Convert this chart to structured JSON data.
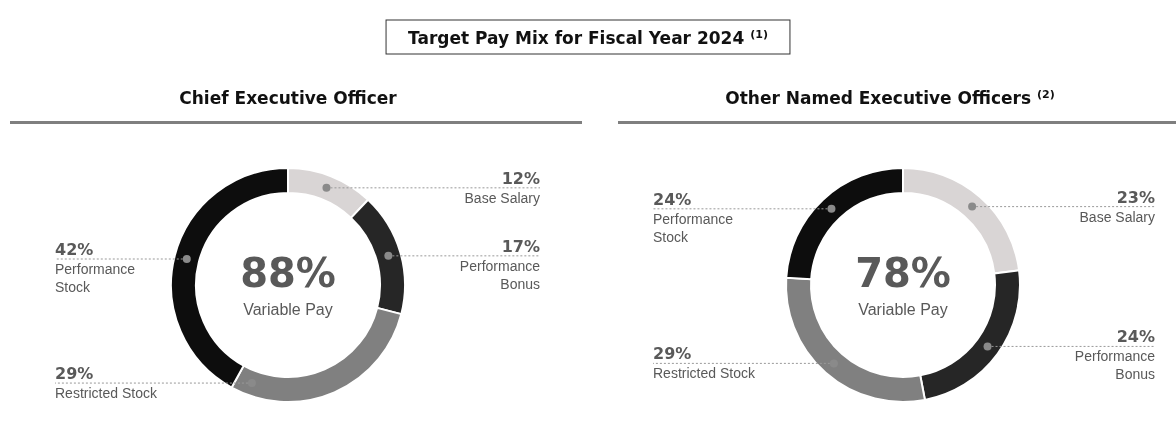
{
  "chart_data": [
    {
      "type": "donut",
      "title": "Target Pay Mix for Fiscal Year 2024 $^{(1)}$",
      "subtitle": "Chief Executive Officer",
      "categories": [
        "Base Salary",
        "Performance Bonus",
        "Restricted Stock",
        "Performance Stock"
      ],
      "values": [
        12,
        17,
        29,
        42
      ],
      "value_labels": [
        "12%",
        "17%",
        "29%",
        "42%"
      ],
      "colors": [
        "#d9d5d5",
        "#262626",
        "#808080",
        "#0d0d0d"
      ],
      "annotations": [
        "88%",
        "Variable Pay"
      ]
    },
    {
      "type": "donut",
      "title": "Other Named Executive Officers $^{(2)}$",
      "categories": [
        "Base Salary",
        "Performance Bonus",
        "Restricted Stock",
        "Performance Stock"
      ],
      "values": [
        23,
        24,
        29,
        24
      ],
      "value_labels": [
        "23%",
        "24%",
        "29%",
        "24%"
      ],
      "colors": [
        "#d9d5d5",
        "#262626",
        "#808080",
        "#0d0d0d"
      ],
      "annotations": [
        "78%",
        "Variable Pay"
      ]
    }
  ]
}
